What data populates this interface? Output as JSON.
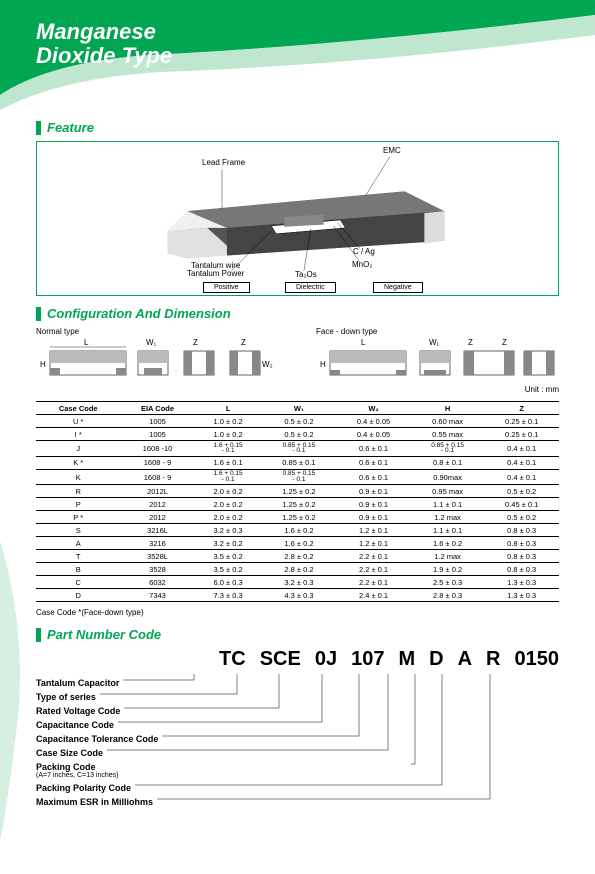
{
  "title_l1": "Manganese",
  "title_l2": "Dioxide Type",
  "sec_feature": "Feature",
  "sec_config": "Configuration And Dimension",
  "sec_part": "Part Number Code",
  "feature": {
    "leadframe": "Lead Frame",
    "emc": "EMC",
    "tantalum_wire": "Tantalum wire\nTantalum Power",
    "ta2o5": "Ta₂Os",
    "cag": "C / Ag",
    "mno2": "MnO₂",
    "positive": "Positive",
    "dielectric": "Dielectric",
    "negative": "Negative"
  },
  "config": {
    "normal": "Normal type",
    "facedown": "Face - down type",
    "unit": "Unit : mm"
  },
  "dim_head": [
    "Case Code",
    "EIA Code",
    "L",
    "W₁",
    "W₂",
    "H",
    "Z"
  ],
  "dim_rows": [
    [
      "U *",
      "1005",
      "1.0 ± 0.2",
      "0.5 ± 0.2",
      "0.4 ± 0.05",
      "0.60 max",
      "0.25 ± 0.1"
    ],
    [
      "I *",
      "1005",
      "1.0 ± 0.2",
      "0.5 ± 0.2",
      "0.4 ± 0.05",
      "0.55 max",
      "0.25 ± 0.1"
    ],
    [
      "J",
      "1608 -10",
      "1.6 + 0.15\n- 0.1",
      "0.85 + 0.15\n- 0.1",
      "0.6 ± 0.1",
      "0.85 + 0.15\n- 0.1",
      "0.4 ± 0.1"
    ],
    [
      "K *",
      "1608 - 9",
      "1.6 ± 0.1",
      "0.85 ± 0.1",
      "0.6 ± 0.1",
      "0.8 ± 0.1",
      "0.4 ± 0.1"
    ],
    [
      "K",
      "1608 - 9",
      "1.6 + 0.15\n- 0.1",
      "0.85 + 0.15\n- 0.1",
      "0.6 ± 0.1",
      "0.90max",
      "0.4 ± 0.1"
    ],
    [
      "R",
      "2012L",
      "2.0 ± 0.2",
      "1.25 ± 0.2",
      "0.9 ± 0.1",
      "0.95 max",
      "0.5 ± 0.2"
    ],
    [
      "P",
      "2012",
      "2.0 ± 0.2",
      "1.25 ± 0.2",
      "0.9 ± 0.1",
      "1.1 ± 0.1",
      "0.45 ± 0.1"
    ],
    [
      "P *",
      "2012",
      "2.0 ± 0.2",
      "1.25 ± 0.2",
      "0.9 ± 0.1",
      "1.2 max",
      "0.5 ± 0.2"
    ],
    [
      "S",
      "3216L",
      "3.2 ± 0.3",
      "1.6 ± 0.2",
      "1.2 ± 0.1",
      "1.1 ± 0.1",
      "0.8 ± 0.3"
    ],
    [
      "A",
      "3216",
      "3.2 ± 0.2",
      "1.6 ± 0.2",
      "1.2 ± 0.1",
      "1.6 ± 0.2",
      "0.8 ± 0.3"
    ],
    [
      "T",
      "3528L",
      "3.5 ± 0.2",
      "2.8 ± 0.2",
      "2.2 ± 0.1",
      "1.2 max",
      "0.8 ± 0.3"
    ],
    [
      "B",
      "3528",
      "3.5 ± 0.2",
      "2.8 ± 0.2",
      "2.2 ± 0.1",
      "1.9 ± 0.2",
      "0.8 ± 0.3"
    ],
    [
      "C",
      "6032",
      "6.0 ± 0.3",
      "3.2 ± 0.3",
      "2.2 ± 0.1",
      "2.5 ± 0.3",
      "1.3 ± 0.3"
    ],
    [
      "D",
      "7343",
      "7.3 ± 0.3",
      "4.3 ± 0.3",
      "2.4 ± 0.1",
      "2.8 ± 0.3",
      "1.3 ± 0.3"
    ]
  ],
  "cc_note": "Case Code *(Face-down type)",
  "partcode_segs": [
    "TC",
    "SCE",
    "0J",
    "107",
    "M",
    "D",
    "A",
    "R",
    "0150"
  ],
  "partcode_labels": [
    "Tantalum Capacitor",
    "Type of series",
    "Rated Voltage Code",
    "Capacitance Code",
    "Capacitance Tolerance Code",
    "Case Size Code",
    "Packing Code",
    "Packing Polarity Code",
    "Maximum ESR in Milliohms"
  ],
  "packing_sub": "(A=7 inches, C=13 inches)",
  "colors": {
    "accent": "#00a651",
    "light": "#b8e3ca"
  }
}
